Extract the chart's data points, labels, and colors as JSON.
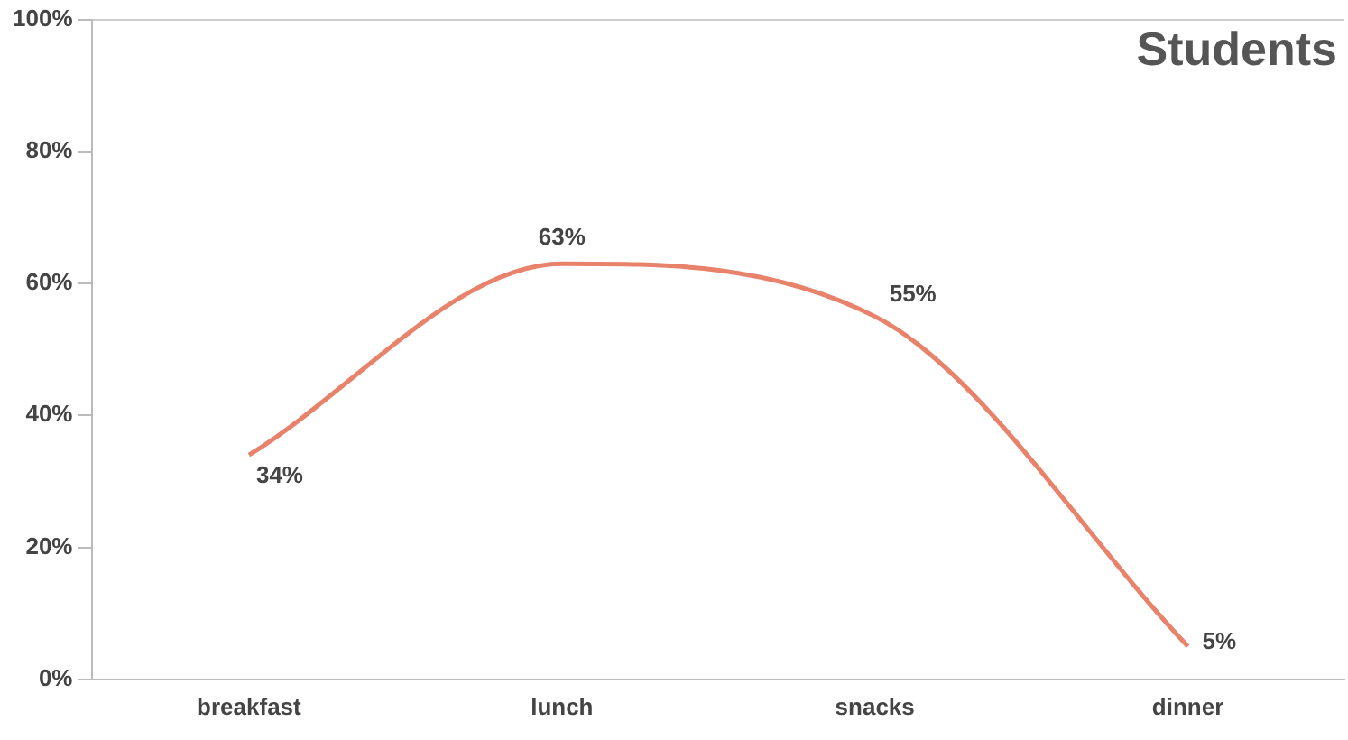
{
  "chart_data": {
    "type": "line",
    "title": "Students",
    "categories": [
      "breakfast",
      "lunch",
      "snacks",
      "dinner"
    ],
    "series": [
      {
        "color": "#e8826a",
        "values": [
          34,
          63,
          55,
          5
        ],
        "value_labels": [
          "34%",
          "63%",
          "55%",
          "5%"
        ]
      }
    ],
    "ylim": [
      0,
      100
    ],
    "yticks": [
      {
        "value": 0,
        "label": "0%"
      },
      {
        "value": 20,
        "label": "20%"
      },
      {
        "value": 40,
        "label": "40%"
      },
      {
        "value": 60,
        "label": "60%"
      },
      {
        "value": 80,
        "label": "80%"
      },
      {
        "value": 100,
        "label": "100%"
      }
    ],
    "grid": false,
    "legend": false,
    "marker": "none",
    "line_style": "solid"
  }
}
